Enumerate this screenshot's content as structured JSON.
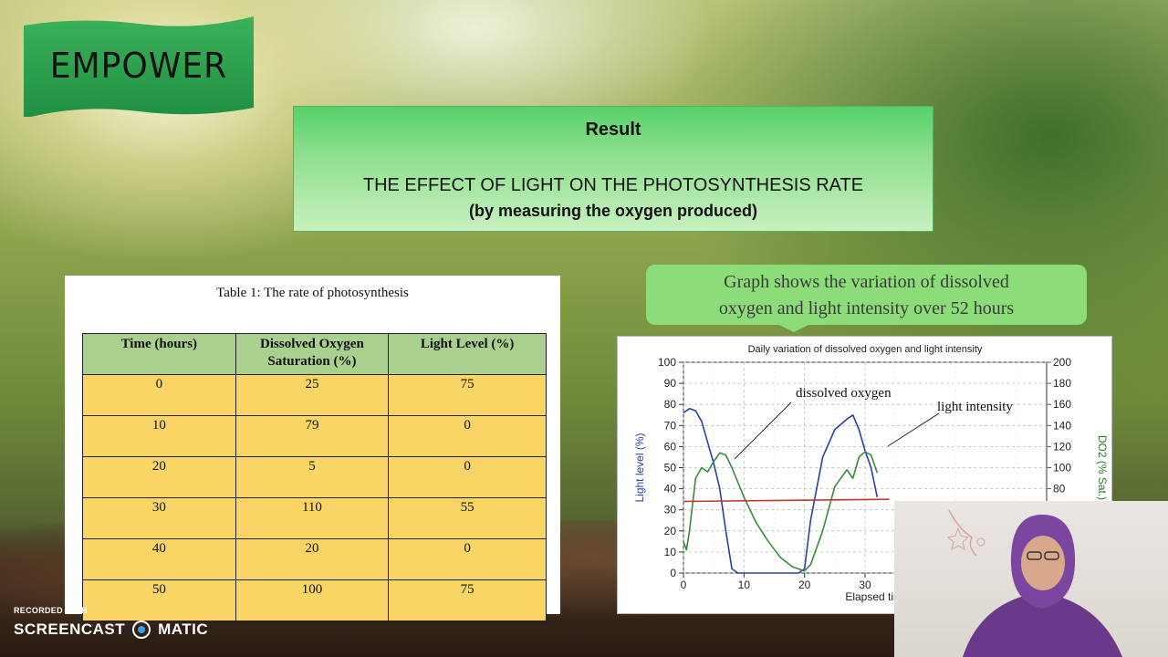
{
  "logo": {
    "text": "EMPOWER"
  },
  "title_box": {
    "heading": "Result",
    "title": "THE EFFECT OF LIGHT ON THE PHOTOSYNTHESIS RATE",
    "subtitle": "(by measuring the oxygen produced)"
  },
  "table": {
    "caption": "Table 1:  The rate of photosynthesis",
    "headers": [
      "Time (hours)",
      "Dissolved Oxygen Saturation (%)",
      "Light Level (%)"
    ],
    "rows": [
      [
        "0",
        "25",
        "75"
      ],
      [
        "10",
        "79",
        "0"
      ],
      [
        "20",
        "5",
        "0"
      ],
      [
        "30",
        "110",
        "55"
      ],
      [
        "40",
        "20",
        "0"
      ],
      [
        "50",
        "100",
        "75"
      ]
    ]
  },
  "callout": {
    "line1": "Graph shows the variation of dissolved",
    "line2": "oxygen and light intensity over 52 hours"
  },
  "chart_data": {
    "type": "line",
    "title": "Daily variation of dissolved oxygen and light intensity",
    "xlabel": "Elapsed time (h",
    "ylabel": "Light level (%)",
    "y2label": "DO2 (% Sat.)",
    "xlim": [
      0,
      60
    ],
    "ylim": [
      0,
      100
    ],
    "y2lim": [
      0,
      200
    ],
    "x_ticks": [
      "0",
      "10",
      "20",
      "30"
    ],
    "y_ticks": [
      "0",
      "10",
      "20",
      "30",
      "40",
      "50",
      "60",
      "70",
      "80",
      "90",
      "100"
    ],
    "y2_ticks": [
      "80",
      "100",
      "120",
      "140",
      "160",
      "180",
      "200"
    ],
    "annotations": [
      "dissolved oxygen",
      "light intensity"
    ],
    "series": [
      {
        "color": "#2b3fa8",
        "axis": "left",
        "x": [
          0,
          1,
          2,
          3,
          4,
          5,
          6,
          7,
          8,
          9,
          12,
          16,
          19,
          20,
          21,
          23,
          25,
          27,
          28,
          29,
          30,
          31,
          32
        ],
        "y": [
          76,
          78,
          77,
          72,
          62,
          52,
          40,
          20,
          2,
          0,
          0,
          0,
          0,
          2,
          25,
          55,
          68,
          73,
          75,
          68,
          58,
          50,
          36
        ]
      },
      {
        "color": "#3a8a3a",
        "axis": "right",
        "x": [
          0,
          0.5,
          1,
          2,
          3,
          4,
          5,
          6,
          7,
          8,
          10,
          12,
          14,
          16,
          18,
          20,
          21,
          23,
          25,
          27,
          28,
          29,
          30,
          31,
          32
        ],
        "y": [
          30,
          22,
          40,
          90,
          100,
          96,
          106,
          114,
          112,
          100,
          72,
          48,
          30,
          15,
          6,
          2,
          8,
          40,
          82,
          98,
          90,
          110,
          115,
          112,
          95
        ]
      },
      {
        "color": "#c0392b",
        "axis": "left",
        "x": [
          0,
          34
        ],
        "y": [
          34,
          35
        ]
      }
    ]
  },
  "watermark": {
    "recorded": "RECORDED WITH",
    "brand_left": "SCREENCAST",
    "brand_right": "MATIC"
  }
}
